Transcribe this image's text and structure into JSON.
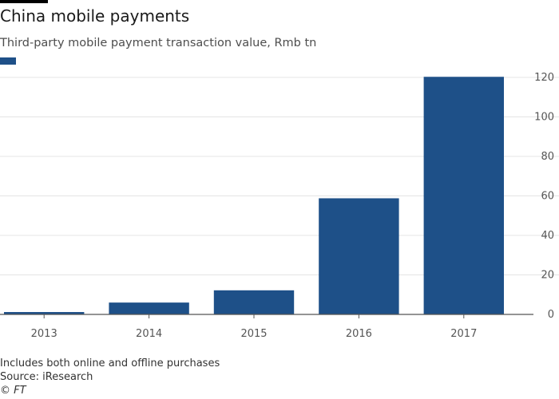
{
  "header": {
    "title": "China mobile payments",
    "subtitle": "Third-party mobile payment transaction value, Rmb tn"
  },
  "footer": {
    "note": "Includes both online and offline purchases",
    "source": "Source: iResearch",
    "copyright": "© FT"
  },
  "colors": {
    "bar": "#1e5088",
    "grid": "#e4e4e4",
    "axis": "#555555",
    "tick_text": "#555555"
  },
  "chart_data": {
    "type": "bar",
    "title": "China mobile payments",
    "subtitle": "Third-party mobile payment transaction value, Rmb tn",
    "categories": [
      "2013",
      "2014",
      "2015",
      "2016",
      "2017"
    ],
    "series": [
      {
        "values": [
          1.2,
          6.0,
          12.2,
          58.8,
          120.3
        ]
      }
    ],
    "xlabel": "",
    "ylabel": "",
    "ylim": [
      0,
      120
    ],
    "yticks": [
      0,
      20,
      40,
      60,
      80,
      100,
      120
    ],
    "y_axis_position": "right",
    "grid": true,
    "legend": "top-left"
  }
}
